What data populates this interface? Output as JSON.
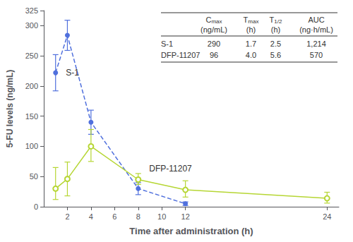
{
  "chart_data": {
    "type": "line",
    "xlabel": "Time after administration (h)",
    "ylabel": "5-FU levels (ng/mL)",
    "xlim": [
      0,
      25
    ],
    "xticks": [
      2,
      4,
      6,
      8,
      10,
      12,
      24
    ],
    "ylim": [
      0,
      325
    ],
    "yticks": [
      0,
      50,
      100,
      150,
      200,
      250,
      300
    ],
    "grid": false,
    "series": [
      {
        "name": "S-1",
        "x": [
          1,
          2,
          4,
          8,
          12
        ],
        "values": [
          222,
          284,
          140,
          30,
          5
        ],
        "yerr_lo": [
          30,
          25,
          20,
          10,
          3
        ],
        "yerr_hi": [
          30,
          25,
          20,
          10,
          3
        ],
        "marker": "circle",
        "line_style": "dashed"
      },
      {
        "name": "DFP-11207",
        "x": [
          1,
          2,
          4,
          8,
          12,
          24
        ],
        "values": [
          30,
          46,
          100,
          45,
          28,
          14
        ],
        "yerr_lo": [
          18,
          28,
          25,
          8,
          12,
          8
        ],
        "yerr_hi": [
          35,
          28,
          28,
          10,
          15,
          10
        ],
        "marker": "open_circle",
        "line_style": "solid"
      }
    ],
    "table": {
      "columns": [
        {
          "symbol": "C",
          "subscript": "max",
          "unit": "(ng/mL)"
        },
        {
          "symbol": "T",
          "subscript": "max",
          "unit": "(h)"
        },
        {
          "symbol": "T",
          "subscript": "1/2",
          "unit": "(h)"
        },
        {
          "symbol": "AUC",
          "unit": "(ng·h/mL)"
        }
      ],
      "rows": [
        [
          "S-1",
          "290",
          "1.7",
          "2.5",
          "1,214"
        ],
        [
          "DFP-11207",
          "96",
          "4.0",
          "5.6",
          "570"
        ]
      ]
    }
  }
}
